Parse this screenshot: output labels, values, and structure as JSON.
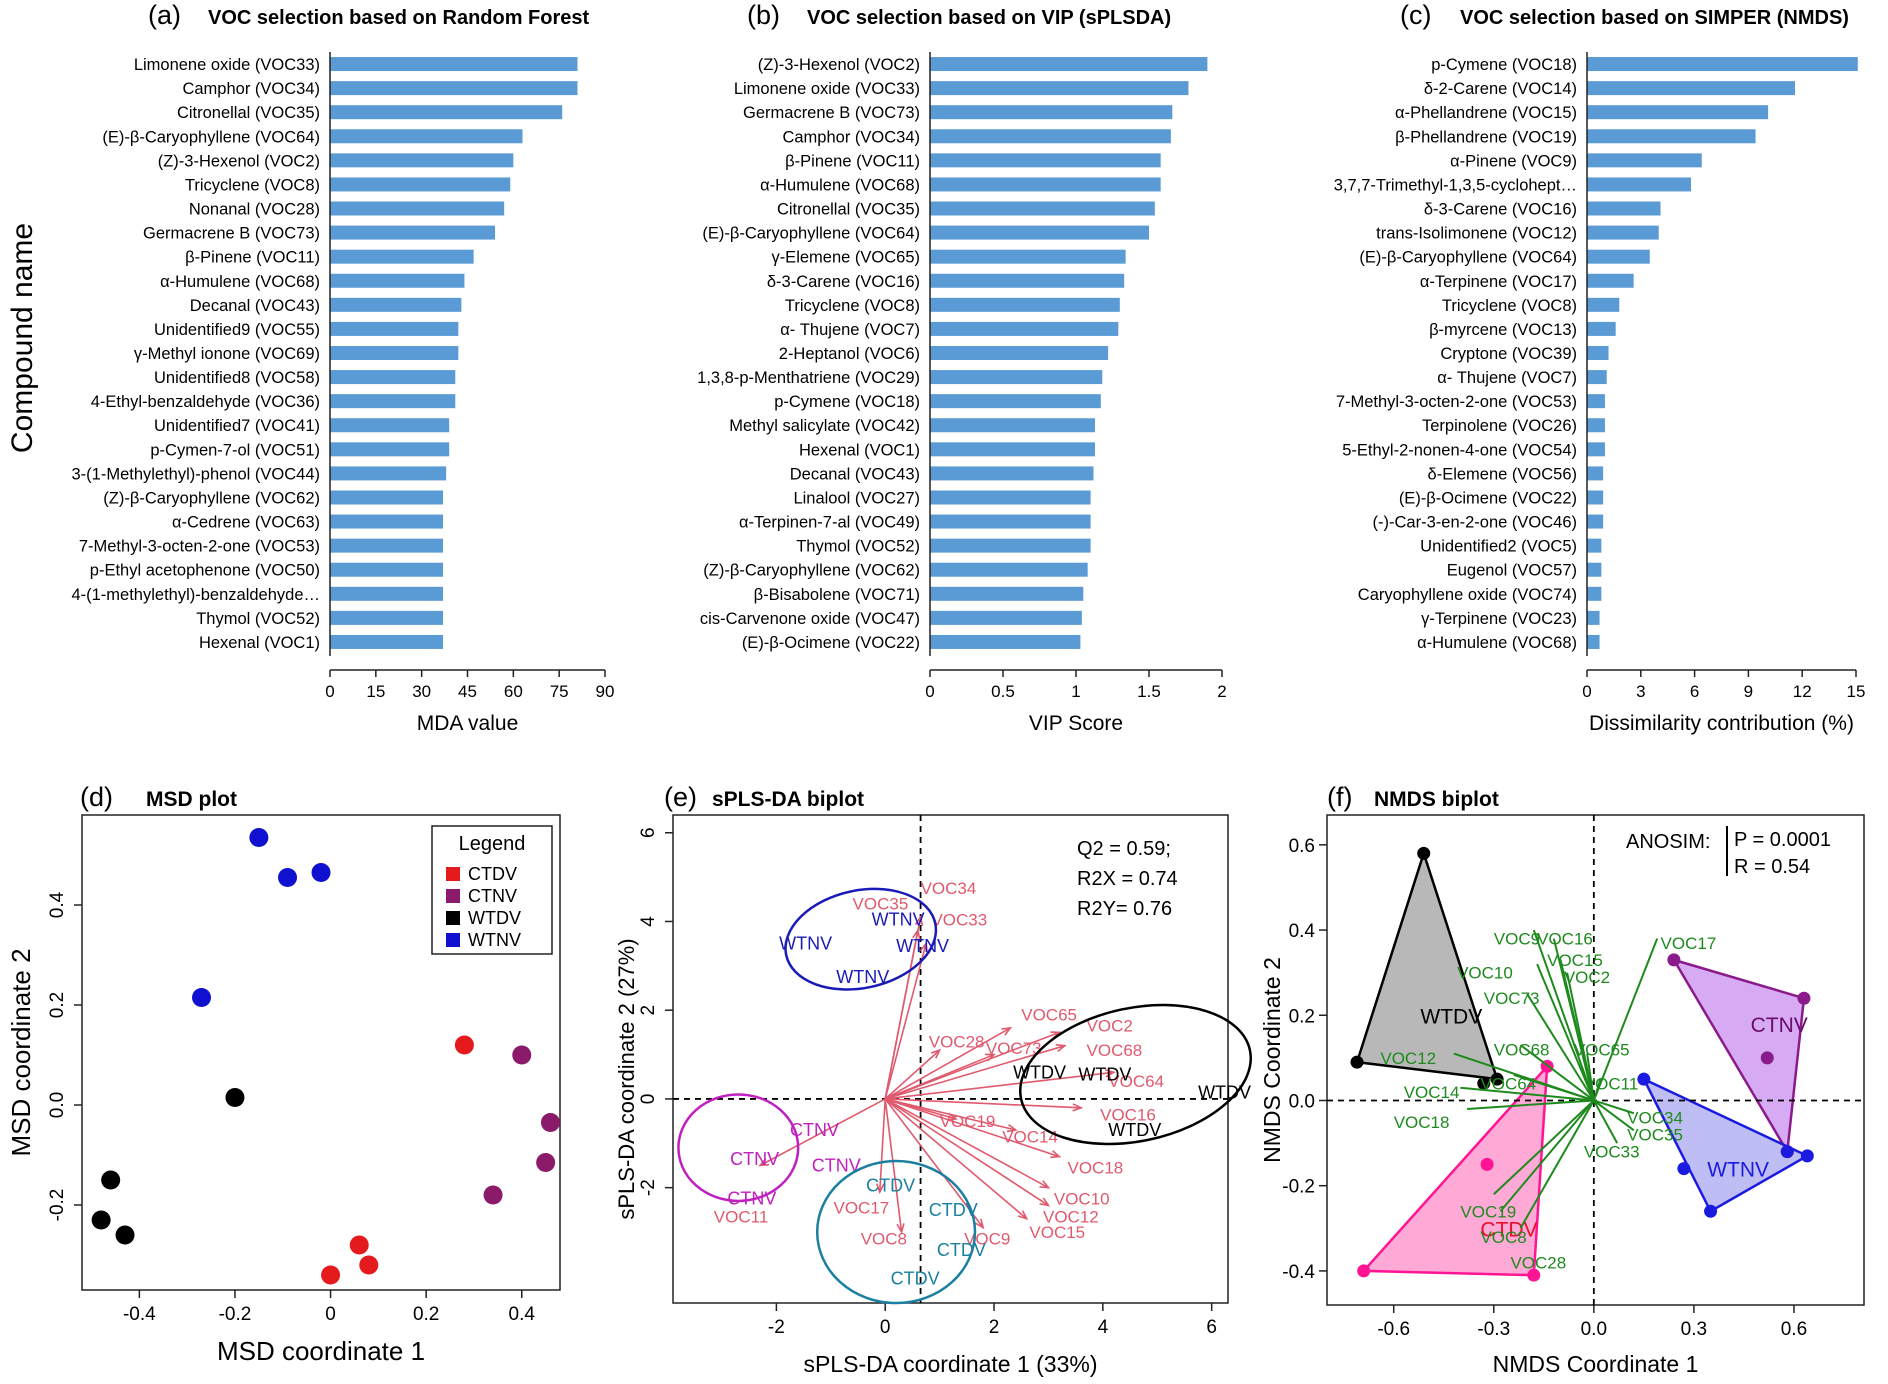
{
  "y_axis_title": "Compound name",
  "chart_data": [
    {
      "id": "a",
      "type": "bar",
      "orientation": "horizontal",
      "panel_label": "(a)",
      "title": "VOC selection based on Random Forest",
      "xlabel": "MDA value",
      "xlim": [
        0,
        90
      ],
      "xticks": [
        0,
        15,
        30,
        45,
        60,
        75,
        90
      ],
      "categories": [
        "Limonene oxide (VOC33)",
        "Camphor (VOC34)",
        "Citronellal (VOC35)",
        "(E)-β-Caryophyllene (VOC64)",
        "(Z)-3-Hexenol (VOC2)",
        "Tricyclene (VOC8)",
        "Nonanal (VOC28)",
        "Germacrene B (VOC73)",
        "β-Pinene (VOC11)",
        "α-Humulene (VOC68)",
        "Decanal (VOC43)",
        "Unidentified9 (VOC55)",
        "γ-Methyl ionone (VOC69)",
        "Unidentified8 (VOC58)",
        "4-Ethyl-benzaldehyde (VOC36)",
        "Unidentified7 (VOC41)",
        "p-Cymen-7-ol (VOC51)",
        "3-(1-Methylethyl)-phenol (VOC44)",
        "(Z)-β-Caryophyllene (VOC62)",
        "α-Cedrene (VOC63)",
        "7-Methyl-3-octen-2-one (VOC53)",
        "p-Ethyl acetophenone (VOC50)",
        "4-(1-methylethyl)-benzaldehyde…",
        "Thymol (VOC52)",
        "Hexenal (VOC1)"
      ],
      "values": [
        81,
        81,
        76,
        63,
        60,
        59,
        57,
        54,
        47,
        44,
        43,
        42,
        42,
        41,
        41,
        39,
        39,
        38,
        37,
        37,
        37,
        37,
        37,
        37,
        37
      ],
      "color": "#5b9bd5"
    },
    {
      "id": "b",
      "type": "bar",
      "orientation": "horizontal",
      "panel_label": "(b)",
      "title": "VOC selection based on VIP (sPLSDA)",
      "xlabel": "VIP Score",
      "xlim": [
        0,
        2
      ],
      "xticks": [
        0,
        0.5,
        1,
        1.5,
        2
      ],
      "categories": [
        "(Z)-3-Hexenol (VOC2)",
        "Limonene oxide (VOC33)",
        "Germacrene B (VOC73)",
        "Camphor (VOC34)",
        "β-Pinene (VOC11)",
        "α-Humulene (VOC68)",
        "Citronellal (VOC35)",
        "(E)-β-Caryophyllene (VOC64)",
        "γ-Elemene (VOC65)",
        "δ-3-Carene (VOC16)",
        "Tricyclene (VOC8)",
        "α- Thujene (VOC7)",
        "2-Heptanol (VOC6)",
        "1,3,8-p-Menthatriene (VOC29)",
        "p-Cymene (VOC18)",
        "Methyl salicylate (VOC42)",
        "Hexenal (VOC1)",
        "Decanal (VOC43)",
        "Linalool (VOC27)",
        "α-Terpinen-7-al (VOC49)",
        "Thymol (VOC52)",
        "(Z)-β-Caryophyllene (VOC62)",
        "β-Bisabolene (VOC71)",
        "cis-Carvenone oxide (VOC47)",
        "(E)-β-Ocimene (VOC22)"
      ],
      "values": [
        1.9,
        1.77,
        1.66,
        1.65,
        1.58,
        1.58,
        1.54,
        1.5,
        1.34,
        1.33,
        1.3,
        1.29,
        1.22,
        1.18,
        1.17,
        1.13,
        1.13,
        1.12,
        1.1,
        1.1,
        1.1,
        1.08,
        1.05,
        1.04,
        1.03
      ],
      "color": "#5b9bd5"
    },
    {
      "id": "c",
      "type": "bar",
      "orientation": "horizontal",
      "panel_label": "(c)",
      "title": "VOC selection based on SIMPER (NMDS)",
      "xlabel": "Dissimilarity contribution (%)",
      "xlim": [
        0,
        15
      ],
      "xticks": [
        0,
        3,
        6,
        9,
        12,
        15
      ],
      "categories": [
        "p-Cymene (VOC18)",
        "δ-2-Carene (VOC14)",
        "α-Phellandrene (VOC15)",
        "β-Phellandrene (VOC19)",
        "α-Pinene (VOC9)",
        "3,7,7-Trimethyl-1,3,5-cyclohept…",
        "δ-3-Carene (VOC16)",
        "trans-Isolimonene (VOC12)",
        "(E)-β-Caryophyllene (VOC64)",
        "α-Terpinene (VOC17)",
        "Tricyclene (VOC8)",
        "β-myrcene (VOC13)",
        "Cryptone (VOC39)",
        "α- Thujene (VOC7)",
        "7-Methyl-3-octen-2-one (VOC53)",
        "Terpinolene (VOC26)",
        "5-Ethyl-2-nonen-4-one (VOC54)",
        "δ-Elemene (VOC56)",
        "(E)-β-Ocimene (VOC22)",
        "(-)-Car-3-en-2-one (VOC46)",
        "Unidentified2 (VOC5)",
        "Eugenol (VOC57)",
        "Caryophyllene oxide (VOC74)",
        "γ-Terpinene (VOC23)",
        "α-Humulene (VOC68)"
      ],
      "values": [
        15.1,
        11.6,
        10.1,
        9.4,
        6.4,
        5.8,
        4.1,
        4.0,
        3.5,
        2.6,
        1.8,
        1.6,
        1.2,
        1.1,
        1.0,
        1.0,
        1.0,
        0.9,
        0.9,
        0.9,
        0.8,
        0.8,
        0.8,
        0.7,
        0.7
      ],
      "color": "#5b9bd5"
    },
    {
      "id": "d",
      "type": "scatter",
      "panel_label": "(d)",
      "title": "MSD plot",
      "xlabel": "MSD coordinate 1",
      "ylabel": "MSD coordinate 2",
      "xlim": [
        -0.52,
        0.48
      ],
      "ylim": [
        -0.37,
        0.58
      ],
      "xticks": [
        -0.4,
        -0.2,
        0.0,
        0.2,
        0.4
      ],
      "xtick_labels": [
        "-0.4",
        "-0.2",
        "0",
        "0.2",
        "0.4"
      ],
      "yticks": [
        -0.2,
        0.0,
        0.2,
        0.4
      ],
      "ytick_labels": [
        "-0.2",
        "0.0",
        "0.2",
        "0.4"
      ],
      "legend": {
        "title": "Legend",
        "entries": [
          "CTDV",
          "CTNV",
          "WTDV",
          "WTNV"
        ],
        "colors": [
          "#e41a1c",
          "#8b1a6b",
          "#000000",
          "#1010d0"
        ]
      },
      "series": [
        {
          "name": "CTDV",
          "color": "#e41a1c",
          "points": [
            [
              0.28,
              0.12
            ],
            [
              0.06,
              -0.28
            ],
            [
              0.08,
              -0.32
            ],
            [
              0.0,
              -0.34
            ]
          ]
        },
        {
          "name": "CTNV",
          "color": "#8b1a6b",
          "points": [
            [
              0.4,
              0.1
            ],
            [
              0.46,
              -0.035
            ],
            [
              0.45,
              -0.115
            ],
            [
              0.34,
              -0.18
            ]
          ]
        },
        {
          "name": "WTDV",
          "color": "#000000",
          "points": [
            [
              -0.2,
              0.015
            ],
            [
              -0.46,
              -0.15
            ],
            [
              -0.48,
              -0.23
            ],
            [
              -0.43,
              -0.26
            ]
          ]
        },
        {
          "name": "WTNV",
          "color": "#1010d0",
          "points": [
            [
              -0.15,
              0.535
            ],
            [
              -0.09,
              0.455
            ],
            [
              -0.02,
              0.465
            ],
            [
              -0.27,
              0.215
            ]
          ]
        }
      ]
    },
    {
      "id": "e",
      "type": "biplot",
      "panel_label": "(e)",
      "title": "sPLS-DA biplot",
      "xlabel": "sPLS-DA coordinate 1 (33%)",
      "ylabel": "sPLS-DA coordinate 2 (27%)",
      "xlim": [
        -3.9,
        6.3
      ],
      "ylim": [
        -4.6,
        6.4
      ],
      "xticks": [
        -2,
        0,
        2,
        4,
        6
      ],
      "yticks": [
        -2,
        0,
        2,
        4,
        6
      ],
      "refline_x": 0.65,
      "refline_y": 0,
      "stats": [
        "Q2 = 0.59;",
        "R2X = 0.74",
        "R2Y= 0.76"
      ],
      "arrow_color": "#e05a6e",
      "arrows": [
        {
          "label": "VOC34",
          "x": 0.65,
          "y": 4.1,
          "lx": 0.65,
          "ly": 4.75
        },
        {
          "label": "VOC35",
          "x": 0.6,
          "y": 3.8,
          "lx": -0.6,
          "ly": 4.4
        },
        {
          "label": "VOC33",
          "x": 0.75,
          "y": 3.5,
          "lx": 0.85,
          "ly": 4.05
        },
        {
          "label": "VOC65",
          "x": 2.3,
          "y": 1.6,
          "lx": 2.5,
          "ly": 1.9
        },
        {
          "label": "VOC2",
          "x": 3.2,
          "y": 1.5,
          "lx": 3.7,
          "ly": 1.65
        },
        {
          "label": "VOC68",
          "x": 3.3,
          "y": 1.2,
          "lx": 3.7,
          "ly": 1.1
        },
        {
          "label": "VOC28",
          "x": 1.0,
          "y": 1.1,
          "lx": 0.8,
          "ly": 1.3
        },
        {
          "label": "VOC73",
          "x": 2.0,
          "y": 1.0,
          "lx": 1.85,
          "ly": 1.15
        },
        {
          "label": "VOC64",
          "x": 4.2,
          "y": 0.6,
          "lx": 4.1,
          "ly": 0.4
        },
        {
          "label": "VOC16",
          "x": 3.6,
          "y": -0.2,
          "lx": 3.95,
          "ly": -0.35
        },
        {
          "label": "VOC19",
          "x": 1.3,
          "y": -0.45,
          "lx": 1.0,
          "ly": -0.5
        },
        {
          "label": "VOC14",
          "x": 2.4,
          "y": -0.7,
          "lx": 2.15,
          "ly": -0.85
        },
        {
          "label": "VOC18",
          "x": 3.2,
          "y": -1.3,
          "lx": 3.35,
          "ly": -1.55
        },
        {
          "label": "VOC10",
          "x": 3.0,
          "y": -2.0,
          "lx": 3.1,
          "ly": -2.25
        },
        {
          "label": "VOC12",
          "x": 3.0,
          "y": -2.4,
          "lx": 2.9,
          "ly": -2.65
        },
        {
          "label": "VOC15",
          "x": 2.6,
          "y": -2.7,
          "lx": 2.65,
          "ly": -3.0
        },
        {
          "label": "VOC9",
          "x": 1.8,
          "y": -2.9,
          "lx": 1.45,
          "ly": -3.15
        },
        {
          "label": "VOC8",
          "x": 0.3,
          "y": -3.0,
          "lx": -0.45,
          "ly": -3.15
        },
        {
          "label": "VOC17",
          "x": -0.1,
          "y": -2.1,
          "lx": -0.95,
          "ly": -2.45
        },
        {
          "label": "VOC11",
          "x": -2.3,
          "y": -1.5,
          "lx": -3.15,
          "ly": -2.65
        }
      ],
      "groups": [
        {
          "name": "WTNV",
          "color": "#1a1ab8",
          "cx": -0.45,
          "cy": 3.6,
          "rx": 1.4,
          "ry": 1.1,
          "rot": -12,
          "labels": [
            {
              "text": "WTNV",
              "x": -0.25,
              "y": 4.05
            },
            {
              "text": "WTNV",
              "x": -1.95,
              "y": 3.5
            },
            {
              "text": "WTNV",
              "x": 0.2,
              "y": 3.45
            },
            {
              "text": "WTNV",
              "x": -0.9,
              "y": 2.75
            }
          ]
        },
        {
          "name": "WTDV",
          "color": "#000000",
          "cx": 4.6,
          "cy": 0.55,
          "rx": 2.15,
          "ry": 1.5,
          "rot": -12,
          "labels": [
            {
              "text": "WTDV",
              "x": 2.35,
              "y": 0.6
            },
            {
              "text": "WTDV",
              "x": 3.55,
              "y": 0.55
            },
            {
              "text": "WTDV",
              "x": 5.75,
              "y": 0.15
            },
            {
              "text": "WTDV",
              "x": 4.1,
              "y": -0.7
            }
          ]
        },
        {
          "name": "CTNV",
          "color": "#c020c0",
          "cx": -2.7,
          "cy": -1.1,
          "rx": 1.1,
          "ry": 1.2,
          "rot": 0,
          "labels": [
            {
              "text": "CTNV",
              "x": -1.75,
              "y": -0.7
            },
            {
              "text": "CTNV",
              "x": -2.85,
              "y": -1.35
            },
            {
              "text": "CTNV",
              "x": -1.35,
              "y": -1.5
            },
            {
              "text": "CTNV",
              "x": -2.9,
              "y": -2.25
            }
          ]
        },
        {
          "name": "CTDV",
          "color": "#1a7fa0",
          "cx": 0.2,
          "cy": -3.0,
          "rx": 1.45,
          "ry": 1.6,
          "rot": 0,
          "labels": [
            {
              "text": "CTDV",
              "x": -0.35,
              "y": -1.95
            },
            {
              "text": "CTDV",
              "x": 0.8,
              "y": -2.5
            },
            {
              "text": "CTDV",
              "x": 0.95,
              "y": -3.4
            },
            {
              "text": "CTDV",
              "x": 0.1,
              "y": -4.05
            }
          ]
        }
      ]
    },
    {
      "id": "f",
      "type": "biplot",
      "panel_label": "(f)",
      "title": "NMDS biplot",
      "xlabel": "NMDS Coordinate 1",
      "ylabel": "NMDS Coordinate 2",
      "xlim": [
        -0.8,
        0.81
      ],
      "ylim": [
        -0.48,
        0.67
      ],
      "xticks": [
        -0.6,
        -0.3,
        0.0,
        0.3,
        0.6
      ],
      "yticks": [
        -0.4,
        -0.2,
        0.0,
        0.2,
        0.4,
        0.6
      ],
      "refline_x": 0,
      "refline_y": 0,
      "stats": [
        "ANOSIM:",
        "P = 0.0001",
        "R = 0.54"
      ],
      "arrow_color": "#1e8a1e",
      "arrows": [
        {
          "label": "VOC17",
          "x": 0.19,
          "y": 0.38,
          "lx": 0.2,
          "ly": 0.37
        },
        {
          "label": "VOC9",
          "x": -0.18,
          "y": 0.4,
          "lx": -0.3,
          "ly": 0.38
        },
        {
          "label": "VOC16",
          "x": -0.12,
          "y": 0.38,
          "lx": -0.17,
          "ly": 0.38
        },
        {
          "label": "VOC15",
          "x": -0.1,
          "y": 0.33,
          "lx": -0.14,
          "ly": 0.33
        },
        {
          "label": "VOC10",
          "x": -0.17,
          "y": 0.32,
          "lx": -0.41,
          "ly": 0.3
        },
        {
          "label": "VOC2",
          "x": -0.08,
          "y": 0.3,
          "lx": -0.09,
          "ly": 0.29
        },
        {
          "label": "VOC73",
          "x": -0.2,
          "y": 0.25,
          "lx": -0.33,
          "ly": 0.24
        },
        {
          "label": "VOC68",
          "x": -0.22,
          "y": 0.13,
          "lx": -0.3,
          "ly": 0.12
        },
        {
          "label": "VOC65",
          "x": -0.02,
          "y": 0.11,
          "lx": -0.06,
          "ly": 0.12
        },
        {
          "label": "VOC12",
          "x": -0.42,
          "y": 0.11,
          "lx": -0.64,
          "ly": 0.1
        },
        {
          "label": "VOC64",
          "x": -0.24,
          "y": 0.06,
          "lx": -0.34,
          "ly": 0.04
        },
        {
          "label": "VOC11",
          "x": 0.02,
          "y": 0.05,
          "lx": -0.03,
          "ly": 0.04
        },
        {
          "label": "VOC14",
          "x": -0.4,
          "y": 0.03,
          "lx": -0.57,
          "ly": 0.02
        },
        {
          "label": "VOC34",
          "x": 0.12,
          "y": -0.03,
          "lx": 0.1,
          "ly": -0.04
        },
        {
          "label": "VOC18",
          "x": -0.38,
          "y": -0.02,
          "lx": -0.6,
          "ly": -0.05
        },
        {
          "label": "VOC35",
          "x": 0.12,
          "y": -0.07,
          "lx": 0.1,
          "ly": -0.08
        },
        {
          "label": "VOC33",
          "x": 0.07,
          "y": -0.1,
          "lx": -0.03,
          "ly": -0.12
        },
        {
          "label": "VOC19",
          "x": -0.3,
          "y": -0.22,
          "lx": -0.4,
          "ly": -0.26
        },
        {
          "label": "VOC8",
          "x": -0.28,
          "y": -0.26,
          "lx": -0.34,
          "ly": -0.32
        },
        {
          "label": "VOC28",
          "x": -0.22,
          "y": -0.3,
          "lx": -0.25,
          "ly": -0.38
        }
      ],
      "groups": [
        {
          "name": "WTDV",
          "color": "#000000",
          "fill": "#a0a0a0",
          "hull": [
            [
              -0.51,
              0.58
            ],
            [
              -0.71,
              0.09
            ],
            [
              -0.29,
              0.05
            ]
          ],
          "points": [
            [
              -0.51,
              0.58
            ],
            [
              -0.71,
              0.09
            ],
            [
              -0.29,
              0.05
            ],
            [
              -0.33,
              0.04
            ]
          ],
          "label": {
            "text": "WTDV",
            "x": -0.52,
            "y": 0.2
          }
        },
        {
          "name": "CTDV",
          "color": "#ff1493",
          "fill": "#ff8cc8",
          "hull": [
            [
              -0.14,
              0.08
            ],
            [
              -0.69,
              -0.4
            ],
            [
              -0.18,
              -0.41
            ]
          ],
          "points": [
            [
              -0.14,
              0.08
            ],
            [
              -0.69,
              -0.4
            ],
            [
              -0.18,
              -0.41
            ],
            [
              -0.32,
              -0.15
            ]
          ],
          "label": {
            "text": "CTDV",
            "x": -0.34,
            "y": -0.3
          }
        },
        {
          "name": "CTNV",
          "color": "#8b1a8b",
          "fill": "#c98ff0",
          "hull": [
            [
              0.24,
              0.33
            ],
            [
              0.63,
              0.24
            ],
            [
              0.58,
              -0.12
            ]
          ],
          "points": [
            [
              0.24,
              0.33
            ],
            [
              0.63,
              0.24
            ],
            [
              0.58,
              -0.12
            ],
            [
              0.52,
              0.1
            ]
          ],
          "label": {
            "text": "CTNV",
            "x": 0.47,
            "y": 0.18
          }
        },
        {
          "name": "WTNV",
          "color": "#1a1ae0",
          "fill": "#a8a8f0",
          "hull": [
            [
              0.15,
              0.05
            ],
            [
              0.35,
              -0.26
            ],
            [
              0.64,
              -0.13
            ]
          ],
          "points": [
            [
              0.15,
              0.05
            ],
            [
              0.27,
              -0.16
            ],
            [
              0.35,
              -0.26
            ],
            [
              0.64,
              -0.13
            ],
            [
              0.58,
              -0.12
            ]
          ],
          "label": {
            "text": "WTNV",
            "x": 0.34,
            "y": -0.16
          }
        }
      ]
    }
  ]
}
